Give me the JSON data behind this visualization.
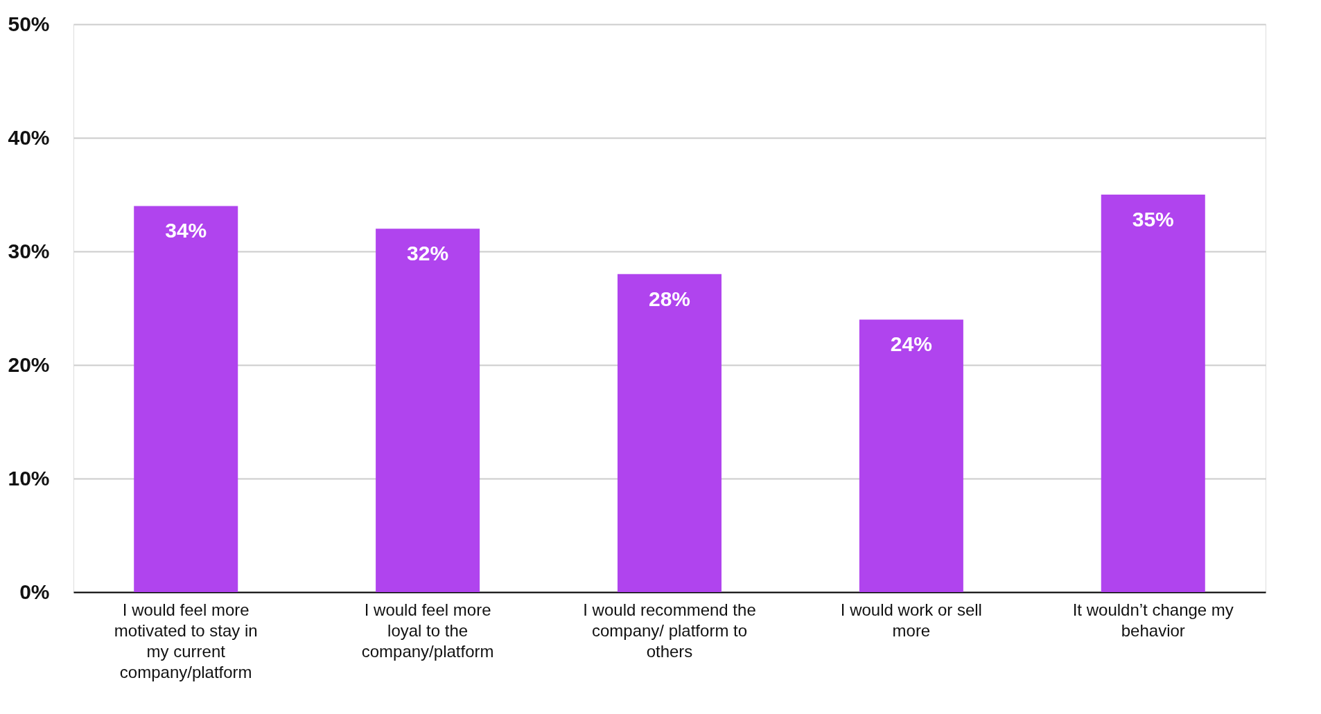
{
  "chart_data": {
    "type": "bar",
    "categories": [
      "I would feel more motivated to stay in my current company/platform",
      "I would feel more loyal to the company/platform",
      "I would recommend the company/ platform to others",
      "I would work or sell more",
      "It wouldn’t change my behavior"
    ],
    "values": [
      34,
      32,
      28,
      24,
      35
    ],
    "value_labels": [
      "34%",
      "32%",
      "28%",
      "24%",
      "35%"
    ],
    "color": "#b044ee",
    "ylim": [
      0,
      50
    ],
    "yticks": [
      {
        "value": 0,
        "label": "0%"
      },
      {
        "value": 10,
        "label": "10%"
      },
      {
        "value": 20,
        "label": "20%"
      },
      {
        "value": 30,
        "label": "30%"
      },
      {
        "value": 40,
        "label": "40%"
      },
      {
        "value": 50,
        "label": "50%"
      }
    ],
    "grid": "y"
  }
}
